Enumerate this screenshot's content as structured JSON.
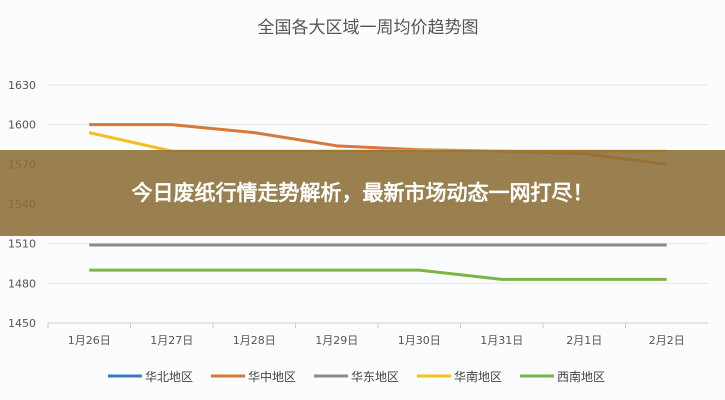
{
  "banner": {
    "headline": "今日废纸行情走势解析，最新市场动态一网打尽！"
  },
  "chart_data": {
    "type": "line",
    "title": "全国各大区域一周均价趋势图",
    "categories": [
      "1月26日",
      "1月27日",
      "1月28日",
      "1月29日",
      "1月30日",
      "1月31日",
      "2月1日",
      "2月2日"
    ],
    "ylim": [
      1450,
      1630
    ],
    "yticks": [
      1450,
      1480,
      1510,
      1540,
      1570,
      1600,
      1630
    ],
    "grid": true,
    "legend_position": "bottom",
    "series": [
      {
        "name": "华北地区",
        "color": "#3a7abf",
        "values": [
          null,
          null,
          null,
          null,
          null,
          null,
          null,
          null
        ]
      },
      {
        "name": "华中地区",
        "color": "#d8783a",
        "values": [
          1600,
          1600,
          1594,
          1584,
          1581,
          1580,
          1578,
          1570
        ]
      },
      {
        "name": "华东地区",
        "color": "#8a8a8a",
        "values": [
          1509,
          1509,
          1509,
          1509,
          1509,
          1509,
          1509,
          1509
        ]
      },
      {
        "name": "华南地区",
        "color": "#f2c020",
        "values": [
          1594,
          1580,
          1580,
          1580,
          1580,
          1580,
          1580,
          1580
        ]
      },
      {
        "name": "西南地区",
        "color": "#7ab648",
        "values": [
          1490,
          1490,
          1490,
          1490,
          1490,
          1483,
          1483,
          1483
        ]
      }
    ]
  }
}
